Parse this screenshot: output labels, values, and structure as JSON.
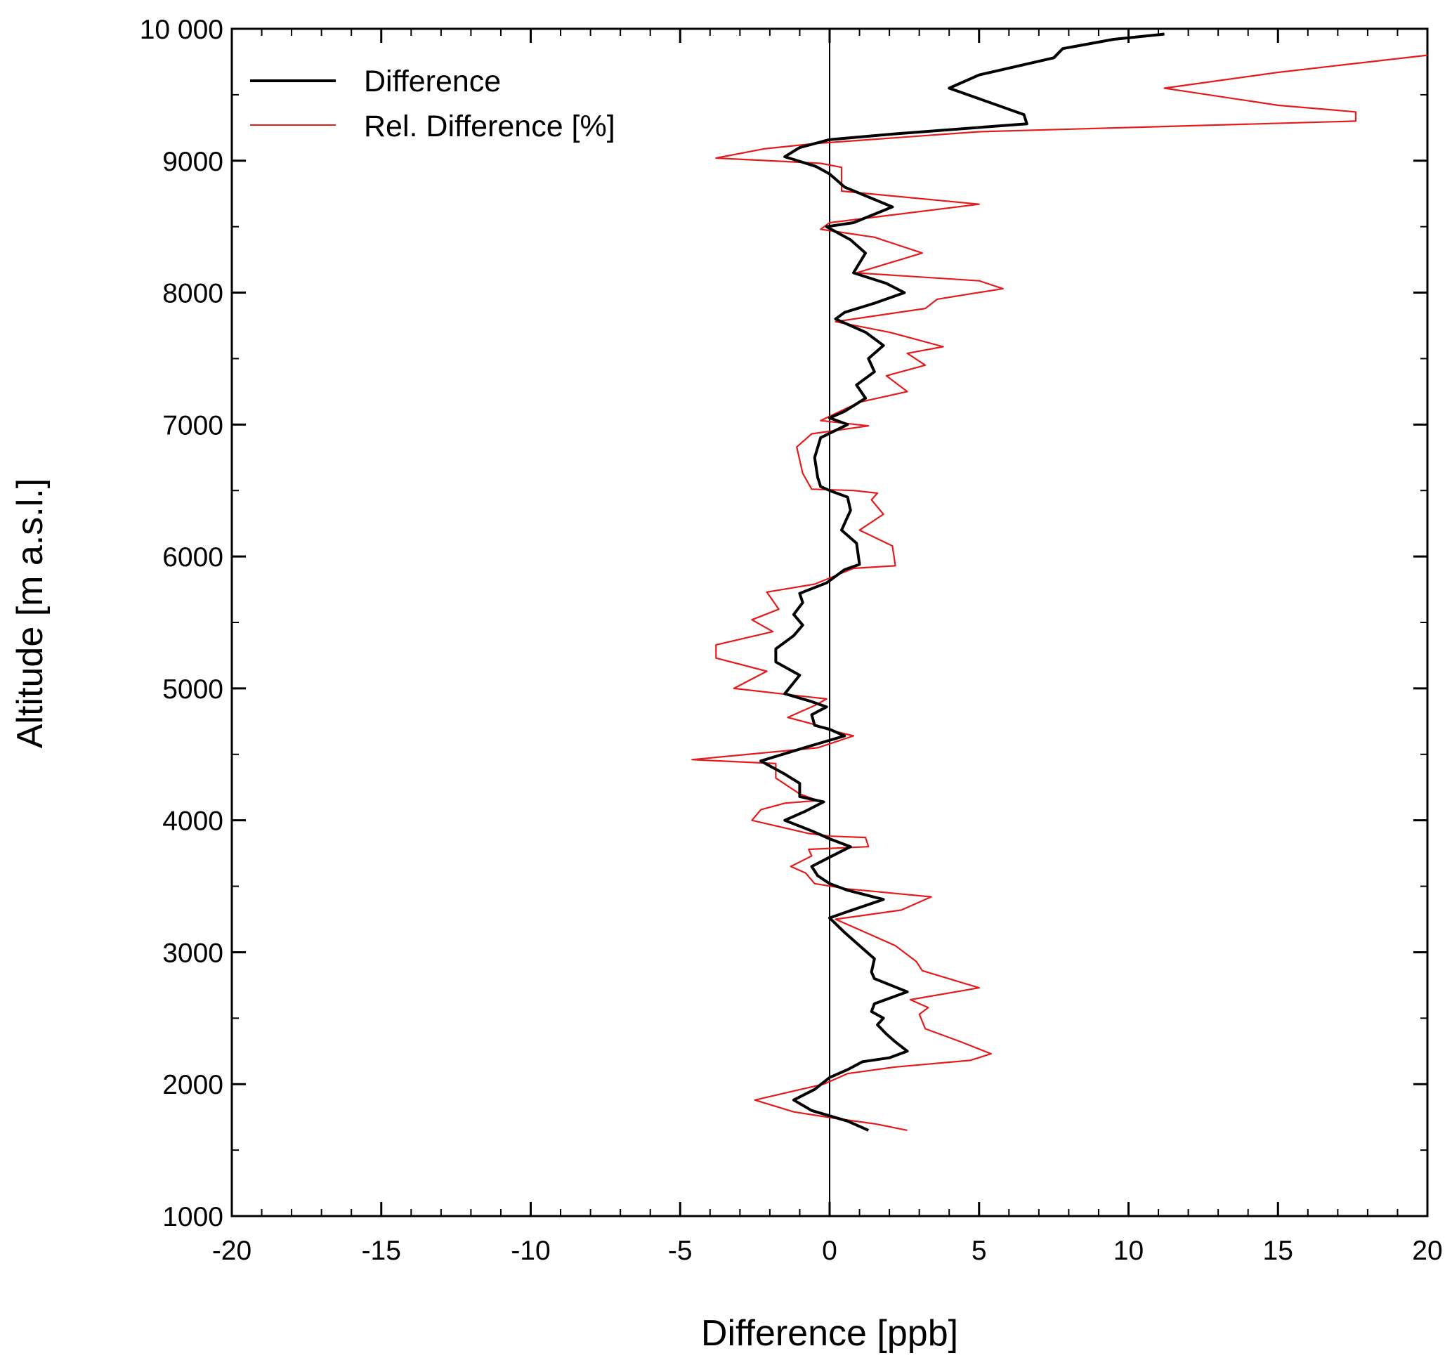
{
  "chart_data": {
    "type": "line",
    "title": "",
    "xlabel": "Difference [ppb]",
    "ylabel": "Altitude [m a.s.l.]",
    "xlim": [
      -20,
      20
    ],
    "ylim": [
      1000,
      10000
    ],
    "x_ticks": [
      -20,
      -15,
      -10,
      -5,
      0,
      5,
      10,
      15,
      20
    ],
    "x_tick_labels": [
      "-20",
      "-15",
      "-10",
      "-5",
      "0",
      "5",
      "10",
      "15",
      "20"
    ],
    "y_ticks": [
      1000,
      2000,
      3000,
      4000,
      5000,
      6000,
      7000,
      8000,
      9000,
      10000
    ],
    "y_tick_labels": [
      "1000",
      "2000",
      "3000",
      "4000",
      "5000",
      "6000",
      "7000",
      "8000",
      "9000",
      "10 000"
    ],
    "grid": false,
    "legend_position": "top-left",
    "reference_line_x": 0,
    "series": [
      {
        "name": "Difference",
        "color": "#000000",
        "points": [
          [
            1.3,
            1650
          ],
          [
            0.6,
            1720
          ],
          [
            0.0,
            1760
          ],
          [
            -0.6,
            1800
          ],
          [
            -1.2,
            1880
          ],
          [
            -0.5,
            1960
          ],
          [
            0.0,
            2050
          ],
          [
            0.6,
            2110
          ],
          [
            1.1,
            2170
          ],
          [
            2.0,
            2200
          ],
          [
            2.6,
            2250
          ],
          [
            2.2,
            2320
          ],
          [
            1.9,
            2380
          ],
          [
            1.6,
            2450
          ],
          [
            1.8,
            2500
          ],
          [
            1.4,
            2550
          ],
          [
            1.5,
            2610
          ],
          [
            2.6,
            2700
          ],
          [
            1.5,
            2800
          ],
          [
            1.4,
            2850
          ],
          [
            1.5,
            2950
          ],
          [
            1.0,
            3050
          ],
          [
            0.5,
            3150
          ],
          [
            0.0,
            3260
          ],
          [
            0.5,
            3300
          ],
          [
            1.8,
            3400
          ],
          [
            0.6,
            3470
          ],
          [
            0.0,
            3520
          ],
          [
            -0.4,
            3580
          ],
          [
            -0.6,
            3650
          ],
          [
            0.0,
            3720
          ],
          [
            0.7,
            3800
          ],
          [
            0.0,
            3860
          ],
          [
            -0.6,
            3920
          ],
          [
            -1.5,
            4000
          ],
          [
            -0.8,
            4070
          ],
          [
            -0.2,
            4140
          ],
          [
            -1.0,
            4180
          ],
          [
            -1.0,
            4280
          ],
          [
            -1.5,
            4350
          ],
          [
            -2.3,
            4450
          ],
          [
            -0.7,
            4560
          ],
          [
            0.5,
            4640
          ],
          [
            0.0,
            4690
          ],
          [
            -0.5,
            4720
          ],
          [
            -0.6,
            4800
          ],
          [
            -0.1,
            4860
          ],
          [
            -0.6,
            4900
          ],
          [
            -1.5,
            4960
          ],
          [
            -1.0,
            5100
          ],
          [
            -1.8,
            5200
          ],
          [
            -1.8,
            5300
          ],
          [
            -1.2,
            5400
          ],
          [
            -0.9,
            5480
          ],
          [
            -1.2,
            5560
          ],
          [
            -0.9,
            5650
          ],
          [
            -1.0,
            5720
          ],
          [
            -0.1,
            5800
          ],
          [
            0.5,
            5900
          ],
          [
            1.0,
            5940
          ],
          [
            0.9,
            6100
          ],
          [
            0.4,
            6200
          ],
          [
            0.7,
            6350
          ],
          [
            0.6,
            6450
          ],
          [
            0.0,
            6500
          ],
          [
            -0.3,
            6530
          ],
          [
            -0.4,
            6600
          ],
          [
            -0.5,
            6750
          ],
          [
            -0.3,
            6900
          ],
          [
            0.6,
            7000
          ],
          [
            0.0,
            7050
          ],
          [
            0.5,
            7100
          ],
          [
            1.2,
            7200
          ],
          [
            0.9,
            7300
          ],
          [
            1.5,
            7400
          ],
          [
            1.3,
            7500
          ],
          [
            1.8,
            7600
          ],
          [
            1.2,
            7700
          ],
          [
            0.2,
            7800
          ],
          [
            0.5,
            7850
          ],
          [
            1.5,
            7920
          ],
          [
            2.5,
            8000
          ],
          [
            1.9,
            8070
          ],
          [
            0.8,
            8150
          ],
          [
            1.2,
            8300
          ],
          [
            0.7,
            8400
          ],
          [
            -0.1,
            8500
          ],
          [
            0.8,
            8530
          ],
          [
            2.1,
            8650
          ],
          [
            0.5,
            8800
          ],
          [
            0.0,
            8900
          ],
          [
            -0.4,
            8950
          ],
          [
            -0.5,
            8960
          ],
          [
            -1.5,
            9030
          ],
          [
            -1.0,
            9100
          ],
          [
            0.0,
            9160
          ],
          [
            2.0,
            9200
          ],
          [
            6.6,
            9280
          ],
          [
            6.5,
            9350
          ],
          [
            4.0,
            9550
          ],
          [
            5.0,
            9650
          ],
          [
            7.5,
            9780
          ],
          [
            7.8,
            9850
          ],
          [
            9.5,
            9920
          ],
          [
            11.2,
            9960
          ]
        ]
      },
      {
        "name": "Rel. Difference [%]",
        "color": "#e51b1b",
        "points": [
          [
            2.6,
            1650
          ],
          [
            1.5,
            1700
          ],
          [
            0.2,
            1740
          ],
          [
            -1.2,
            1790
          ],
          [
            -2.5,
            1880
          ],
          [
            -0.2,
            2000
          ],
          [
            0.6,
            2080
          ],
          [
            2.2,
            2130
          ],
          [
            4.7,
            2180
          ],
          [
            5.4,
            2230
          ],
          [
            4.4,
            2320
          ],
          [
            3.2,
            2420
          ],
          [
            3.0,
            2530
          ],
          [
            3.3,
            2580
          ],
          [
            2.7,
            2640
          ],
          [
            5.0,
            2730
          ],
          [
            3.1,
            2860
          ],
          [
            2.9,
            2930
          ],
          [
            2.2,
            3050
          ],
          [
            1.0,
            3170
          ],
          [
            0.2,
            3250
          ],
          [
            2.4,
            3320
          ],
          [
            3.4,
            3420
          ],
          [
            0.6,
            3480
          ],
          [
            -0.5,
            3520
          ],
          [
            -0.8,
            3600
          ],
          [
            -1.3,
            3650
          ],
          [
            -0.6,
            3730
          ],
          [
            -0.7,
            3780
          ],
          [
            1.3,
            3800
          ],
          [
            1.2,
            3870
          ],
          [
            0.0,
            3880
          ],
          [
            -0.7,
            3900
          ],
          [
            -2.6,
            4000
          ],
          [
            -2.3,
            4080
          ],
          [
            -1.5,
            4130
          ],
          [
            -0.4,
            4150
          ],
          [
            -1.0,
            4200
          ],
          [
            -1.8,
            4320
          ],
          [
            -1.8,
            4430
          ],
          [
            -4.6,
            4460
          ],
          [
            -0.4,
            4550
          ],
          [
            0.8,
            4640
          ],
          [
            -0.1,
            4690
          ],
          [
            -0.4,
            4720
          ],
          [
            -1.4,
            4780
          ],
          [
            -0.5,
            4870
          ],
          [
            -0.1,
            4920
          ],
          [
            -3.2,
            5000
          ],
          [
            -2.1,
            5130
          ],
          [
            -3.8,
            5230
          ],
          [
            -3.8,
            5330
          ],
          [
            -1.9,
            5430
          ],
          [
            -2.6,
            5520
          ],
          [
            -1.7,
            5600
          ],
          [
            -2.1,
            5730
          ],
          [
            -0.5,
            5790
          ],
          [
            0.8,
            5910
          ],
          [
            2.2,
            5930
          ],
          [
            2.1,
            6080
          ],
          [
            1.0,
            6200
          ],
          [
            1.8,
            6320
          ],
          [
            1.4,
            6430
          ],
          [
            1.6,
            6480
          ],
          [
            0.8,
            6500
          ],
          [
            -0.6,
            6510
          ],
          [
            -0.9,
            6630
          ],
          [
            -1.1,
            6830
          ],
          [
            -0.6,
            6930
          ],
          [
            1.3,
            6990
          ],
          [
            -0.3,
            7030
          ],
          [
            1.0,
            7170
          ],
          [
            2.6,
            7250
          ],
          [
            1.9,
            7370
          ],
          [
            3.2,
            7450
          ],
          [
            2.6,
            7540
          ],
          [
            3.8,
            7590
          ],
          [
            2.0,
            7700
          ],
          [
            0.2,
            7780
          ],
          [
            3.2,
            7880
          ],
          [
            3.6,
            7950
          ],
          [
            5.8,
            8030
          ],
          [
            5.0,
            8090
          ],
          [
            0.9,
            8150
          ],
          [
            3.1,
            8300
          ],
          [
            1.5,
            8420
          ],
          [
            -0.3,
            8480
          ],
          [
            0.0,
            8530
          ],
          [
            5.0,
            8670
          ],
          [
            0.4,
            8770
          ],
          [
            0.4,
            8950
          ],
          [
            -0.3,
            8980
          ],
          [
            -3.8,
            9020
          ],
          [
            -2.2,
            9090
          ],
          [
            -0.5,
            9130
          ],
          [
            5.0,
            9220
          ],
          [
            17.6,
            9300
          ],
          [
            17.6,
            9370
          ],
          [
            15.0,
            9420
          ],
          [
            11.2,
            9550
          ],
          [
            15.0,
            9670
          ],
          [
            20.0,
            9800
          ]
        ]
      }
    ]
  }
}
